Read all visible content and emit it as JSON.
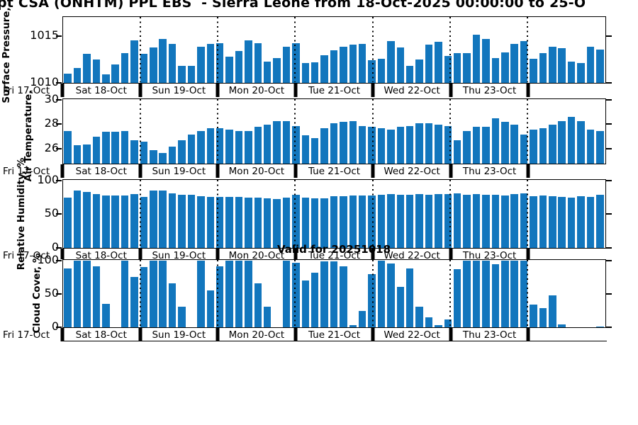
{
  "title": "pt CSA (ONHTM) PPL EBS  - Sierra Leone from 18-Oct-2025 00:00:00 to 25-O",
  "valid_text": "Valid for 20251018",
  "colors": {
    "bar": "#1276bd",
    "axis": "#000000"
  },
  "x_axis": {
    "left_label": "Fri 17-Oct",
    "day_labels": [
      "Sat 18-Oct",
      "Sun 19-Oct",
      "Mon 20-Oct",
      "Tue 21-Oct",
      "Wed 22-Oct",
      "Thu 23-Oct"
    ],
    "bars_per_day": 8
  },
  "chart_data": [
    {
      "type": "bar",
      "ylabel": "Surface Pressure,",
      "yticks": [
        1015,
        1010
      ],
      "ylim": [
        1010,
        1017
      ],
      "grid": "dotted-day-separators",
      "values": [
        1011.0,
        1011.6,
        1013.1,
        1012.5,
        1010.9,
        1012.0,
        1013.2,
        1014.6,
        1013.1,
        1013.8,
        1014.7,
        1014.2,
        1011.8,
        1011.8,
        1013.9,
        1014.2,
        1014.3,
        1012.8,
        1013.4,
        1014.6,
        1014.3,
        1012.3,
        1012.7,
        1013.9,
        1014.3,
        1012.1,
        1012.2,
        1013.0,
        1013.5,
        1013.9,
        1014.1,
        1014.2,
        1012.4,
        1012.6,
        1014.5,
        1013.8,
        1011.8,
        1012.5,
        1014.1,
        1014.4,
        1012.9,
        1013.2,
        1013.2,
        1015.2,
        1014.7,
        1012.7,
        1013.3,
        1014.2,
        1014.5,
        1012.6,
        1013.2,
        1013.9,
        1013.7,
        1012.3,
        1012.1,
        1013.9,
        1013.6
      ]
    },
    {
      "type": "bar",
      "ylabel": "Air Temperature,",
      "yticks": [
        30,
        28,
        26
      ],
      "ylim": [
        24.83,
        30
      ],
      "grid": "dotted-day-separators",
      "values": [
        27.5,
        26.3,
        26.4,
        27.0,
        27.4,
        27.4,
        27.5,
        26.7,
        26.6,
        25.9,
        25.7,
        26.2,
        26.7,
        27.2,
        27.5,
        27.7,
        27.7,
        27.6,
        27.5,
        27.5,
        27.8,
        28.0,
        28.3,
        28.3,
        27.9,
        27.1,
        26.9,
        27.7,
        28.1,
        28.2,
        28.3,
        27.9,
        27.8,
        27.7,
        27.6,
        27.8,
        27.9,
        28.1,
        28.1,
        28.0,
        27.9,
        26.7,
        27.5,
        27.8,
        27.8,
        28.5,
        28.2,
        28.0,
        27.2,
        27.6,
        27.7,
        28.0,
        28.3,
        28.6,
        28.3,
        27.6,
        27.5
      ]
    },
    {
      "type": "bar",
      "ylabel": "Relative Humidity, %",
      "yticks": [
        100,
        50,
        0
      ],
      "ylim": [
        0,
        100
      ],
      "grid": "dotted-day-separators",
      "values": [
        75,
        85,
        83,
        80,
        78,
        78,
        78,
        80,
        76,
        85,
        85,
        81,
        79,
        79,
        77,
        76,
        76,
        76,
        76,
        75,
        75,
        74,
        73,
        75,
        79,
        75,
        74,
        74,
        77,
        77,
        78,
        78,
        78,
        79,
        80,
        79,
        79,
        80,
        79,
        80,
        80,
        81,
        79,
        80,
        79,
        79,
        78,
        80,
        81,
        77,
        78,
        77,
        76,
        75,
        77,
        76,
        79
      ]
    },
    {
      "type": "bar",
      "ylabel": "Cloud Cover, %",
      "yticks": [
        100,
        50,
        0
      ],
      "ylim": [
        0,
        100
      ],
      "grid": "dotted-day-separators",
      "values": [
        88,
        100,
        100,
        92,
        35,
        0,
        100,
        76,
        90,
        100,
        100,
        66,
        31,
        0,
        100,
        55,
        92,
        100,
        100,
        100,
        66,
        31,
        0,
        100,
        97,
        70,
        82,
        99,
        99,
        92,
        3,
        24,
        80,
        100,
        96,
        61,
        88,
        31,
        15,
        3,
        12,
        87,
        100,
        100,
        100,
        95,
        100,
        100,
        100,
        34,
        29,
        48,
        4,
        0,
        0,
        0,
        1
      ]
    }
  ]
}
